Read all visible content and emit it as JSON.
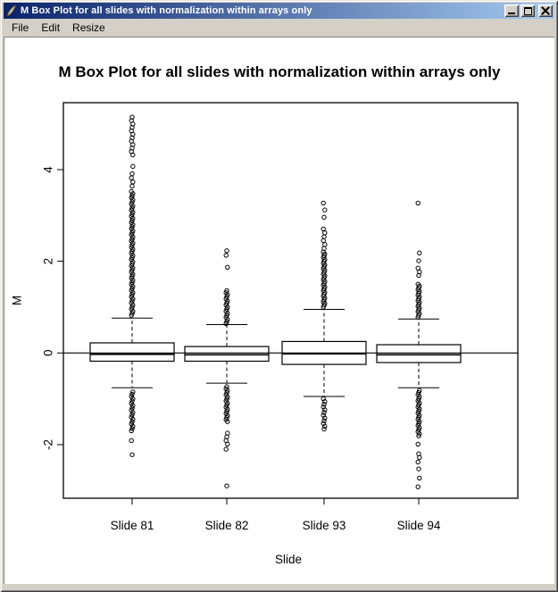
{
  "window": {
    "title": "M Box Plot for all slides with normalization within arrays only",
    "icon": "feather-icon",
    "menu": [
      "File",
      "Edit",
      "Resize"
    ],
    "controls": [
      "minimize",
      "maximize",
      "close"
    ]
  },
  "colors": {
    "titlebar_left": "#0a246a",
    "titlebar_right": "#a6caf0",
    "chrome": "#d4d0c8",
    "plot_bg": "#ffffff",
    "fg": "#000000"
  },
  "chart_data": {
    "type": "boxplot",
    "title": "M Box Plot for all slides with normalization within arrays only",
    "xlabel": "Slide",
    "ylabel": "M",
    "categories": [
      "Slide 81",
      "Slide 82",
      "Slide 93",
      "Slide 94"
    ],
    "ylim": [
      -3.17,
      5.46
    ],
    "yticks": [
      -2,
      0,
      2,
      4
    ],
    "refline": 0,
    "grid": false,
    "legend": null,
    "boxes": [
      {
        "label": "Slide 81",
        "q1": -0.18,
        "median": -0.03,
        "q3": 0.22,
        "whisker_low": -0.76,
        "whisker_high": 0.76,
        "outliers_high": {
          "dense": [
            [
              0.82,
              3.55,
              0.045
            ],
            [
              3.64,
              3.93,
              0.09
            ],
            [
              4.32,
              5.16,
              0.075
            ]
          ],
          "points": [
            4.07
          ]
        },
        "outliers_low": {
          "dense": [
            [
              -1.7,
              -0.82,
              0.05
            ]
          ],
          "points": [
            -1.91,
            -2.22
          ]
        }
      },
      {
        "label": "Slide 82",
        "q1": -0.18,
        "median": -0.04,
        "q3": 0.14,
        "whisker_low": -0.66,
        "whisker_high": 0.62,
        "outliers_high": {
          "dense": [
            [
              0.64,
              1.4,
              0.045
            ]
          ],
          "points": [
            1.87,
            2.13,
            2.23
          ]
        },
        "outliers_low": {
          "dense": [
            [
              -1.5,
              -0.72,
              0.045
            ],
            [
              -1.99,
              -1.71,
              0.08
            ]
          ],
          "points": [
            -2.1,
            -2.9
          ]
        }
      },
      {
        "label": "Slide 93",
        "q1": -0.25,
        "median": -0.02,
        "q3": 0.25,
        "whisker_low": -0.95,
        "whisker_high": 0.95,
        "outliers_high": {
          "dense": [
            [
              1.0,
              2.2,
              0.04
            ],
            [
              2.28,
              2.72,
              0.085
            ]
          ],
          "points": [
            2.96,
            3.12,
            3.27
          ]
        },
        "outliers_low": {
          "dense": [
            [
              -1.66,
              -0.99,
              0.06
            ]
          ],
          "points": []
        }
      },
      {
        "label": "Slide 94",
        "q1": -0.21,
        "median": -0.04,
        "q3": 0.18,
        "whisker_low": -0.76,
        "whisker_high": 0.74,
        "outliers_high": {
          "dense": [
            [
              0.78,
              1.52,
              0.04
            ],
            [
              1.69,
              1.88,
              0.08
            ]
          ],
          "points": [
            2.01,
            2.18,
            3.27
          ]
        },
        "outliers_low": {
          "dense": [
            [
              -1.81,
              -0.8,
              0.045
            ]
          ],
          "points": [
            -1.99,
            -2.2,
            -2.28,
            -2.38,
            -2.53,
            -2.73,
            -2.92
          ]
        }
      }
    ]
  }
}
